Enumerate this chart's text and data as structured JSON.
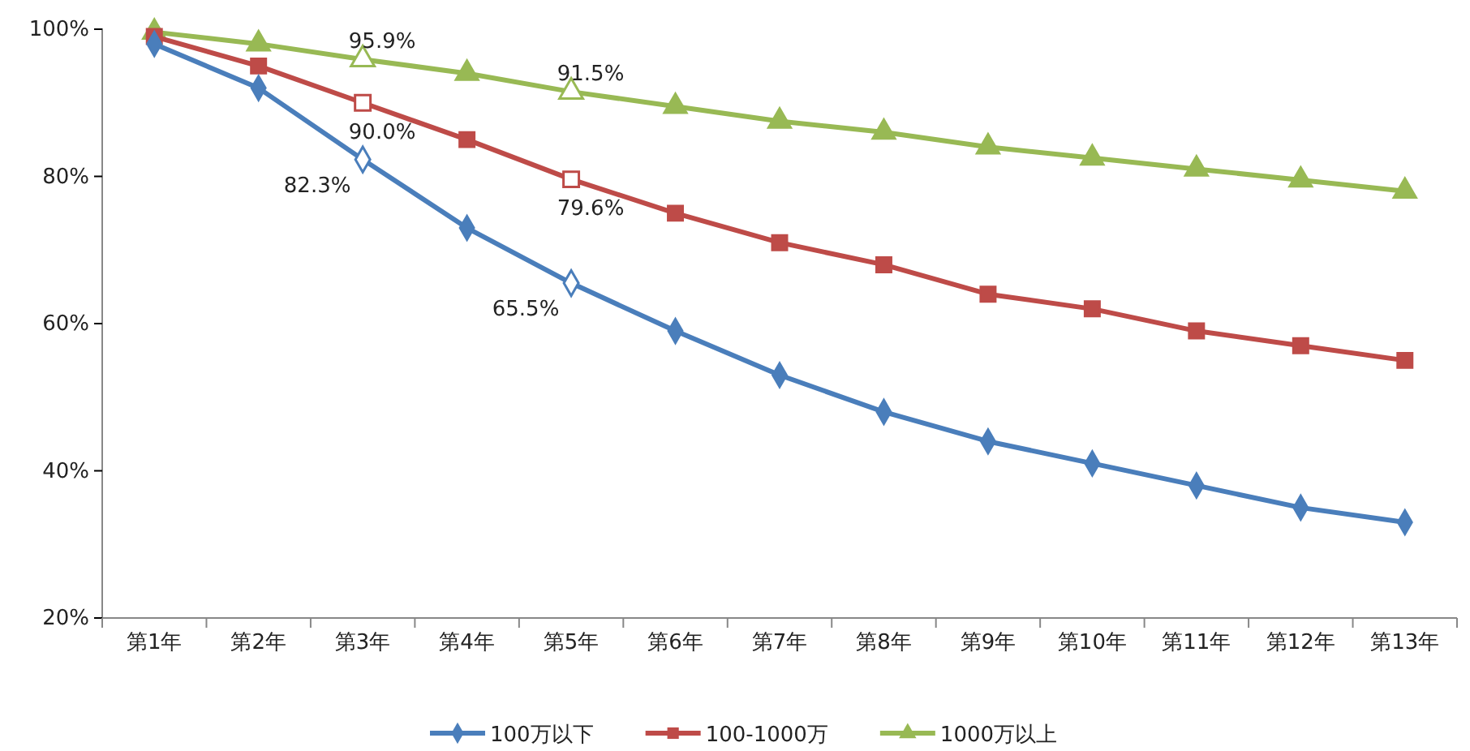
{
  "chart_data": {
    "type": "line",
    "categories": [
      "第1年",
      "第2年",
      "第3年",
      "第4年",
      "第5年",
      "第6年",
      "第7年",
      "第8年",
      "第9年",
      "第10年",
      "第11年",
      "第12年",
      "第13年"
    ],
    "ylim": [
      20,
      100
    ],
    "yticks": [
      {
        "value": 20,
        "label": "20%"
      },
      {
        "value": 40,
        "label": "40%"
      },
      {
        "value": 60,
        "label": "60%"
      },
      {
        "value": 80,
        "label": "80%"
      },
      {
        "value": 100,
        "label": "100%"
      }
    ],
    "legend": "bottom",
    "grid": false,
    "series": [
      {
        "name": "100万以下",
        "color": "#4a7ebb",
        "marker": "diamond",
        "values": [
          98,
          92,
          82.3,
          73,
          65.5,
          59,
          53,
          48,
          44,
          41,
          38,
          35,
          33
        ],
        "value_labels": [
          null,
          null,
          "82.3%",
          null,
          "65.5%",
          null,
          null,
          null,
          null,
          null,
          null,
          null,
          null
        ]
      },
      {
        "name": "100-1000万",
        "color": "#be4b48",
        "marker": "square",
        "values": [
          99,
          95,
          90.0,
          85,
          79.6,
          75,
          71,
          68,
          64,
          62,
          59,
          57,
          55
        ],
        "value_labels": [
          null,
          null,
          "90.0%",
          null,
          "79.6%",
          null,
          null,
          null,
          null,
          null,
          null,
          null,
          null
        ]
      },
      {
        "name": "1000万以上",
        "color": "#98b954",
        "marker": "triangle",
        "values": [
          99.6,
          98,
          95.9,
          94,
          91.5,
          89.5,
          87.5,
          86,
          84,
          82.5,
          81,
          79.5,
          78
        ],
        "value_labels": [
          null,
          null,
          "95.9%",
          null,
          "91.5%",
          null,
          null,
          null,
          null,
          null,
          null,
          null,
          null
        ]
      }
    ]
  }
}
